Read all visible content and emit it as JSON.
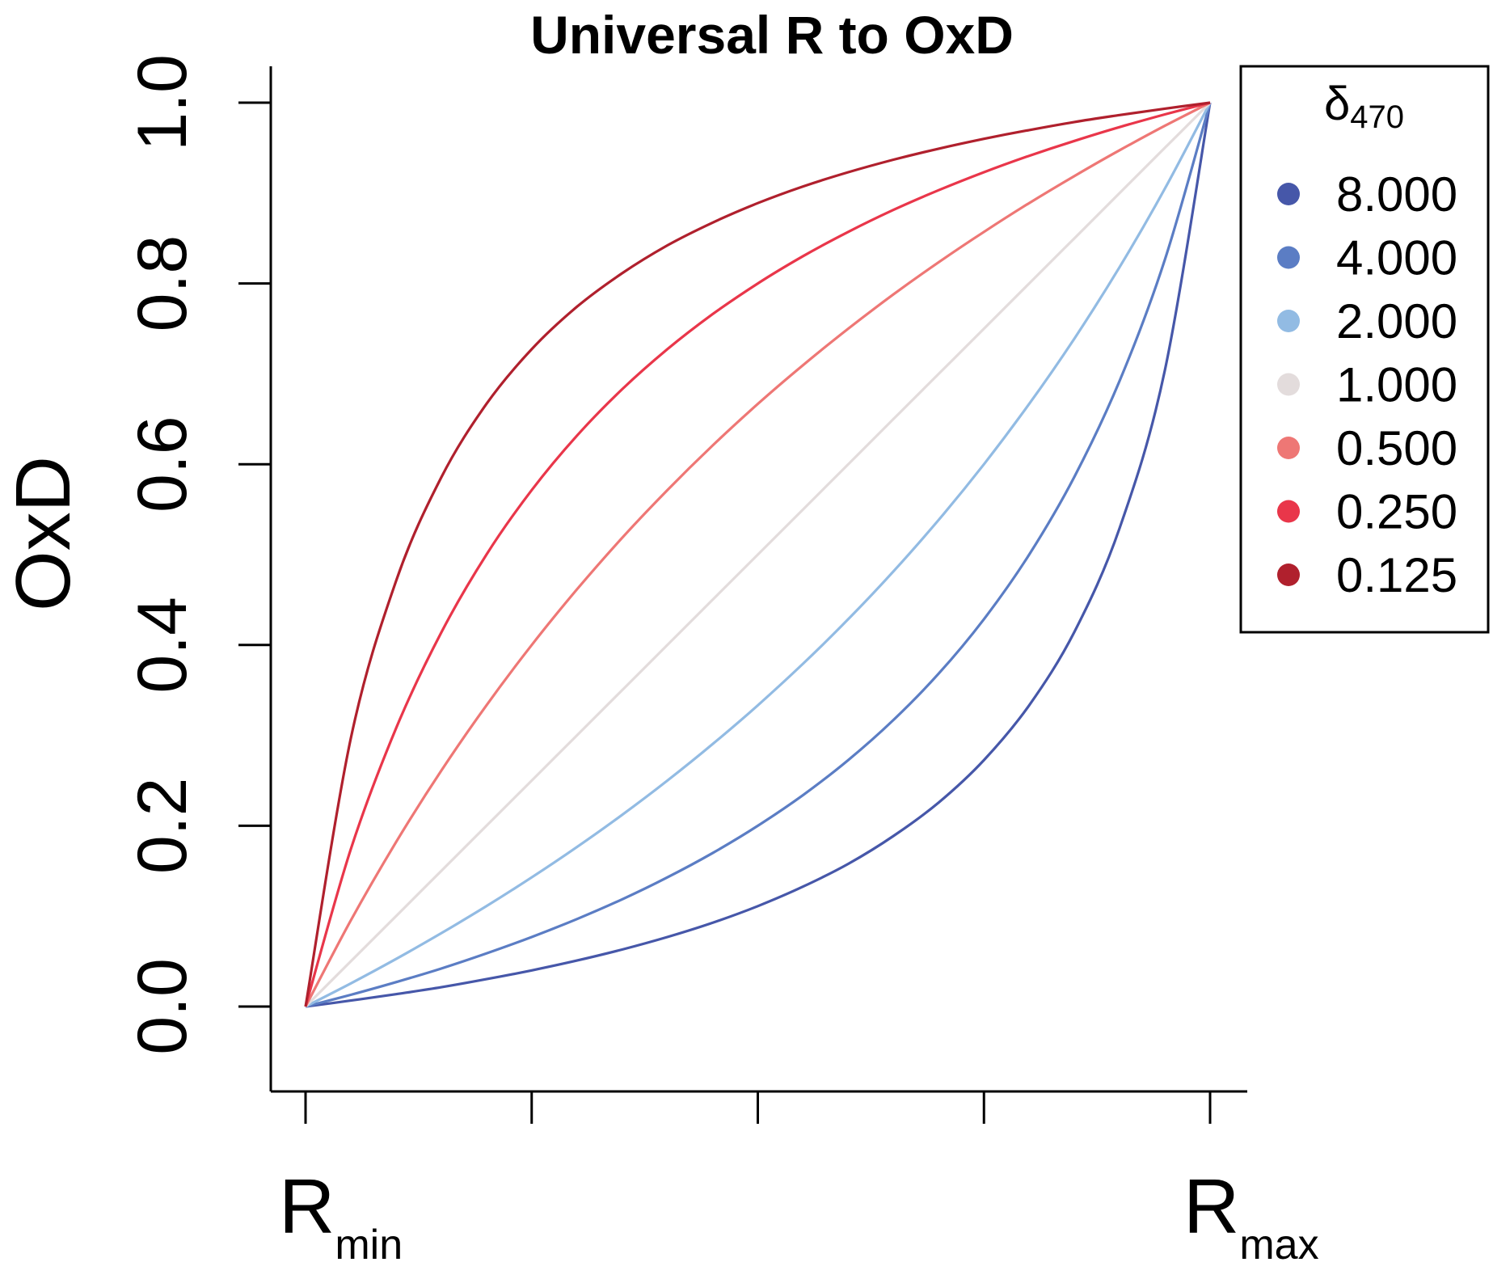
{
  "chart_data": {
    "type": "line",
    "title": "Universal R to OxD",
    "ylabel": "OxD",
    "xlabel": "",
    "xlim": [
      0,
      1
    ],
    "ylim": [
      0,
      1
    ],
    "x_ticks": [
      0,
      0.25,
      0.5,
      0.75,
      1
    ],
    "x_tick_labels": [
      {
        "main": "R",
        "sub": "min"
      },
      {
        "main": "R",
        "sub": "max"
      }
    ],
    "y_ticks": [
      "0.0",
      "0.2",
      "0.4",
      "0.6",
      "0.8",
      "1.0"
    ],
    "grid": false,
    "legend": {
      "title": "δ",
      "title_sub": "470",
      "placement": "top-right, outside plot"
    },
    "x": [
      0,
      0.05,
      0.1,
      0.15,
      0.2,
      0.25,
      0.3,
      0.35,
      0.4,
      0.45,
      0.5,
      0.55,
      0.6,
      0.65,
      0.7,
      0.75,
      0.8,
      0.85,
      0.9,
      0.95,
      1
    ],
    "series": [
      {
        "name": "8.000",
        "color": "#4657A9",
        "values": [
          0,
          0.0066,
          0.0137,
          0.0214,
          0.0303,
          0.04,
          0.0509,
          0.0631,
          0.0769,
          0.0927,
          0.1111,
          0.1327,
          0.1579,
          0.1887,
          0.2258,
          0.2727,
          0.3333,
          0.4146,
          0.5294,
          0.7037,
          1
        ]
      },
      {
        "name": "4.000",
        "color": "#5B7DC4",
        "values": [
          0,
          0.013,
          0.027,
          0.042,
          0.0588,
          0.0769,
          0.0968,
          0.1186,
          0.1429,
          0.1698,
          0.2,
          0.234,
          0.2727,
          0.3171,
          0.3684,
          0.4286,
          0.5,
          0.5862,
          0.6923,
          0.8261,
          1
        ]
      },
      {
        "name": "2.000",
        "color": "#92BBE3",
        "values": [
          0,
          0.0256,
          0.0526,
          0.0811,
          0.1111,
          0.1429,
          0.1765,
          0.2121,
          0.25,
          0.2903,
          0.3333,
          0.3793,
          0.4286,
          0.4815,
          0.5385,
          0.6,
          0.6667,
          0.7391,
          0.8182,
          0.9048,
          1
        ]
      },
      {
        "name": "1.000",
        "color": "#E3DCDC",
        "values": [
          0,
          0.05,
          0.1,
          0.15,
          0.2,
          0.25,
          0.3,
          0.35,
          0.4,
          0.45,
          0.5,
          0.55,
          0.6,
          0.65,
          0.7,
          0.75,
          0.8,
          0.85,
          0.9,
          0.95,
          1
        ]
      },
      {
        "name": "0.500",
        "color": "#EE7775",
        "values": [
          0,
          0.0952,
          0.1818,
          0.2609,
          0.3333,
          0.4,
          0.4615,
          0.5185,
          0.5714,
          0.6207,
          0.6667,
          0.7097,
          0.75,
          0.7879,
          0.8235,
          0.8571,
          0.8889,
          0.9189,
          0.9474,
          0.9744,
          1
        ]
      },
      {
        "name": "0.250",
        "color": "#E9364A",
        "values": [
          0,
          0.1739,
          0.3077,
          0.4138,
          0.5,
          0.5714,
          0.6316,
          0.6829,
          0.7273,
          0.766,
          0.8,
          0.8302,
          0.8571,
          0.8814,
          0.9032,
          0.9231,
          0.9412,
          0.9577,
          0.973,
          0.987,
          1
        ]
      },
      {
        "name": "0.125",
        "color": "#B0202D",
        "values": [
          0,
          0.2963,
          0.4706,
          0.5854,
          0.6667,
          0.7273,
          0.7742,
          0.8113,
          0.8421,
          0.8673,
          0.8889,
          0.9073,
          0.9231,
          0.9369,
          0.9491,
          0.96,
          0.9697,
          0.9786,
          0.9863,
          0.9934,
          1
        ]
      }
    ]
  }
}
